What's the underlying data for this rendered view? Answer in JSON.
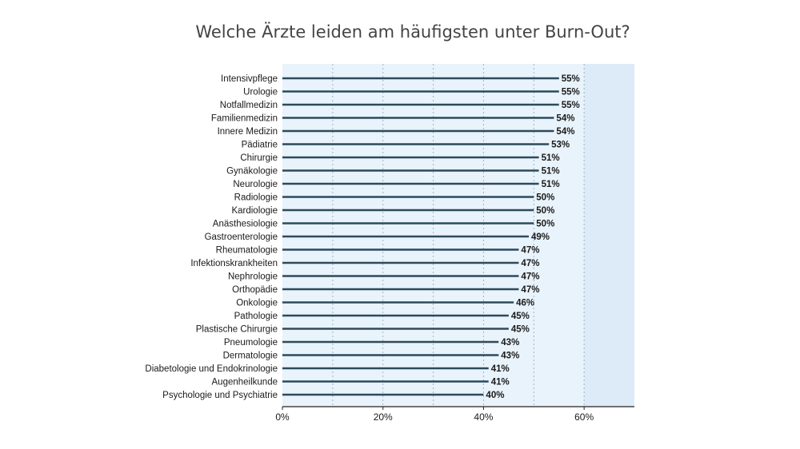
{
  "chart_data": {
    "type": "bar",
    "orientation": "horizontal",
    "title": "Welche Ärzte leiden am häufigsten unter Burn-Out?",
    "categories": [
      "Intensivpflege",
      "Urologie",
      "Notfallmedizin",
      "Familienmedizin",
      "Innere Medizin",
      "Pädiatrie",
      "Chirurgie",
      "Gynäkologie",
      "Neurologie",
      "Radiologie",
      "Kardiologie",
      "Anästhesiologie",
      "Gastroenterologie",
      "Rheumatologie",
      "Infektionskrankheiten",
      "Nephrologie",
      "Orthopädie",
      "Onkologie",
      "Pathologie",
      "Plastische Chirurgie",
      "Pneumologie",
      "Dermatologie",
      "Diabetologie und Endokrinologie",
      "Augenheilkunde",
      "Psychologie und Psychiatrie"
    ],
    "values": [
      55,
      55,
      55,
      54,
      54,
      53,
      51,
      51,
      51,
      50,
      50,
      50,
      49,
      47,
      47,
      47,
      47,
      46,
      45,
      45,
      43,
      43,
      41,
      41,
      40
    ],
    "value_suffix": "%",
    "xlim": [
      0,
      70
    ],
    "x_ticks": [
      0,
      20,
      40,
      60
    ],
    "x_tick_labels": [
      "0%",
      "20%",
      "40%",
      "60%"
    ],
    "grid": true,
    "colors": {
      "bar": "#2d4a5c",
      "background": "#e9f3fb",
      "highlight_band": "#dcebf7",
      "grid": "#9fb4c4",
      "title": "#444444"
    }
  }
}
